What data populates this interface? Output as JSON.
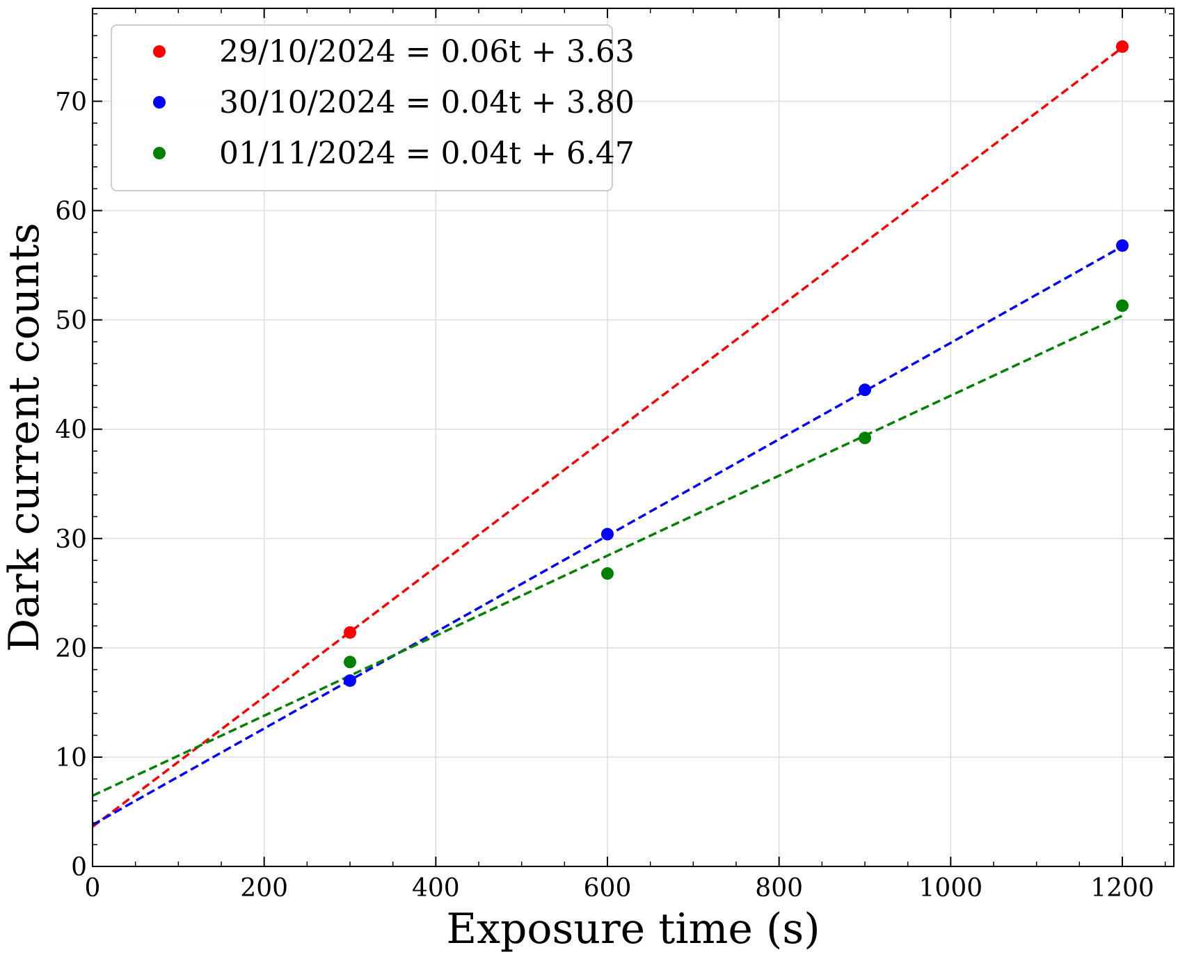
{
  "chart_data": {
    "type": "scatter",
    "title": "",
    "xlabel": "Exposure time (s)",
    "ylabel": "Dark current counts",
    "xlim": [
      0,
      1260
    ],
    "ylim": [
      0,
      78.5
    ],
    "xticks": [
      0,
      200,
      400,
      600,
      800,
      1000,
      1200
    ],
    "yticks": [
      0,
      10,
      20,
      30,
      40,
      50,
      60,
      70
    ],
    "grid": true,
    "legend_position": "top-left",
    "series": [
      {
        "name": "29/10/2024 = 0.06t + 3.63",
        "color": "#ff0000",
        "points": [
          [
            300,
            21.4
          ],
          [
            1200,
            75.0
          ]
        ],
        "fit": {
          "slope": 0.0594,
          "intercept": 3.63
        }
      },
      {
        "name": "30/10/2024 = 0.04t + 3.80",
        "color": "#0000ff",
        "points": [
          [
            300,
            17.0
          ],
          [
            600,
            30.4
          ],
          [
            900,
            43.6
          ],
          [
            1200,
            56.8
          ]
        ],
        "fit": {
          "slope": 0.0441,
          "intercept": 3.8
        }
      },
      {
        "name": "01/11/2024 = 0.04t + 6.47",
        "color": "#008000",
        "points": [
          [
            300,
            18.7
          ],
          [
            600,
            26.8
          ],
          [
            900,
            39.2
          ],
          [
            1200,
            51.3
          ]
        ],
        "fit": {
          "slope": 0.0366,
          "intercept": 6.47
        }
      }
    ]
  }
}
